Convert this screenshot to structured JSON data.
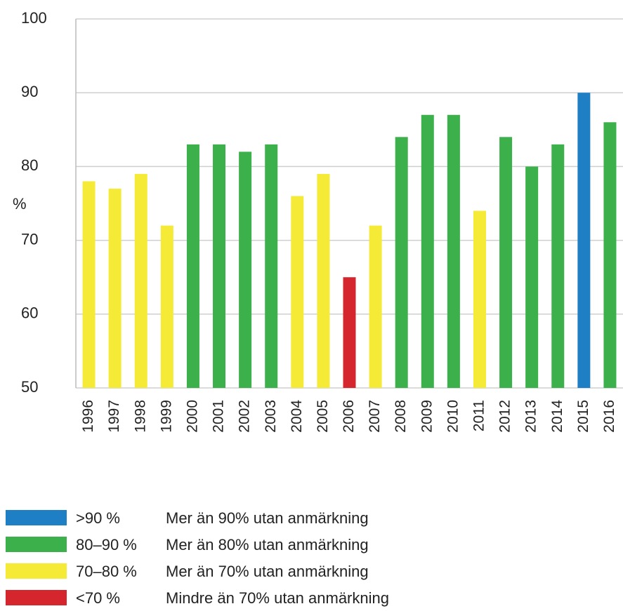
{
  "chart_data": {
    "type": "bar",
    "y_label": "%",
    "categories": [
      "1996",
      "1997",
      "1998",
      "1999",
      "2000",
      "2001",
      "2002",
      "2003",
      "2004",
      "2005",
      "2006",
      "2007",
      "2008",
      "2009",
      "2010",
      "2011",
      "2012",
      "2013",
      "2014",
      "2015",
      "2016"
    ],
    "values": [
      78,
      77,
      79,
      72,
      83,
      83,
      82,
      83,
      76,
      79,
      65,
      72,
      84,
      87,
      87,
      74,
      84,
      80,
      83,
      90,
      86
    ],
    "colors": [
      "#f5ea36",
      "#f5ea36",
      "#f5ea36",
      "#f5ea36",
      "#3cb04a",
      "#3cb04a",
      "#3cb04a",
      "#3cb04a",
      "#f5ea36",
      "#f5ea36",
      "#d4262c",
      "#f5ea36",
      "#3cb04a",
      "#3cb04a",
      "#3cb04a",
      "#f5ea36",
      "#3cb04a",
      "#3cb04a",
      "#3cb04a",
      "#1f7fc4",
      "#3cb04a"
    ],
    "ylim": [
      50,
      100
    ],
    "yticks": [
      50,
      60,
      70,
      80,
      90,
      100
    ],
    "grid": true,
    "legend": [
      {
        "label": ">90 %",
        "description": "Mer än 90% utan anmärkning",
        "color": "#1f7fc4"
      },
      {
        "label": "80–90 %",
        "description": "Mer än 80% utan anmärkning",
        "color": "#3cb04a"
      },
      {
        "label": "70–80 %",
        "description": "Mer än 70% utan anmärkning",
        "color": "#f5ea36"
      },
      {
        "label": "<70 %",
        "description": "Mindre än 70% utan anmärkning",
        "color": "#d4262c"
      }
    ]
  }
}
